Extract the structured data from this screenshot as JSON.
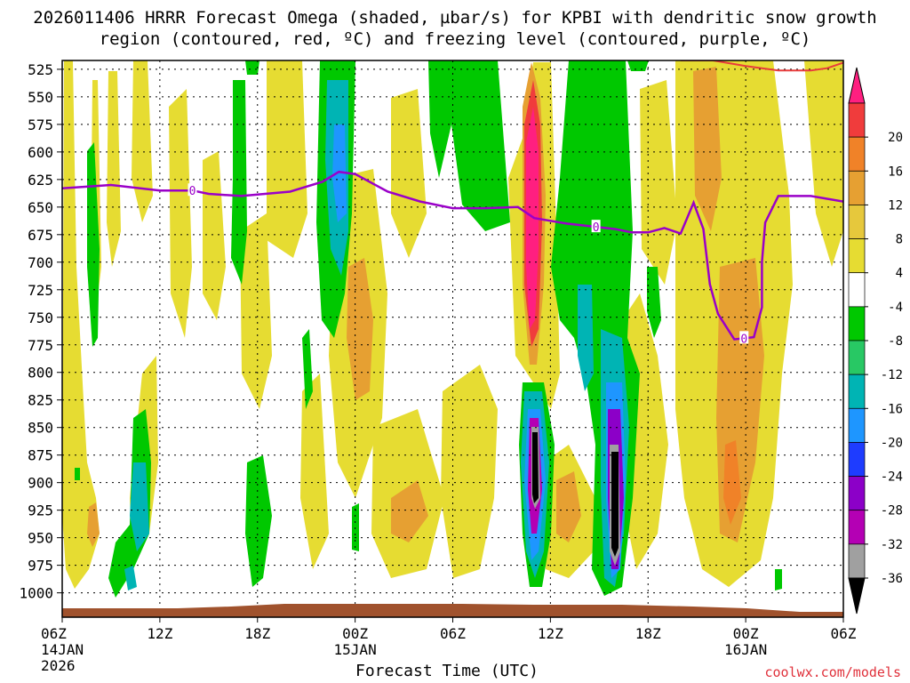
{
  "chart_data": {
    "type": "heatmap",
    "title": "2026011406 HRRR Forecast Omega (shaded, µbar/s) for KPBI with dendritic snow growth region (contoured, red, ºC) and freezing level (contoured, purple, ºC)",
    "xlabel": "Forecast Time (UTC)",
    "ylabel": "",
    "y_ticks": [
      525,
      550,
      575,
      600,
      625,
      650,
      675,
      700,
      725,
      750,
      775,
      800,
      825,
      850,
      875,
      900,
      925,
      950,
      975,
      1000
    ],
    "y_range": [
      517,
      1010
    ],
    "x_range_hours": [
      0,
      48
    ],
    "x_ticks": [
      {
        "h": 0,
        "label": "06Z",
        "sub": [
          "14JAN",
          "2026"
        ]
      },
      {
        "h": 6,
        "label": "12Z",
        "sub": []
      },
      {
        "h": 12,
        "label": "18Z",
        "sub": []
      },
      {
        "h": 18,
        "label": "00Z",
        "sub": [
          "15JAN"
        ]
      },
      {
        "h": 24,
        "label": "06Z",
        "sub": []
      },
      {
        "h": 30,
        "label": "12Z",
        "sub": []
      },
      {
        "h": 36,
        "label": "18Z",
        "sub": []
      },
      {
        "h": 42,
        "label": "00Z",
        "sub": [
          "16JAN"
        ]
      },
      {
        "h": 48,
        "label": "06Z",
        "sub": []
      }
    ],
    "colorbar": {
      "labels": [
        "20",
        "16",
        "12",
        "8",
        "4",
        "-4",
        "-8",
        "-12",
        "-16",
        "-20",
        "-24",
        "-28",
        "-32",
        "-36"
      ],
      "colors": [
        "#ff1f80",
        "#f03c3c",
        "#f08228",
        "#e6a032",
        "#e6c83c",
        "#e6dc32",
        "#ffffff",
        "#00c800",
        "#28c864",
        "#00b4b4",
        "#1e96ff",
        "#1e3cff",
        "#8c00c8",
        "#b400b4",
        "#a0a0a0",
        "#000000"
      ]
    },
    "freezing_level": {
      "label": "0",
      "points": [
        [
          0,
          633
        ],
        [
          3,
          630
        ],
        [
          6,
          635
        ],
        [
          8,
          635
        ],
        [
          9,
          638
        ],
        [
          11,
          640
        ],
        [
          14,
          636
        ],
        [
          16,
          627
        ],
        [
          17,
          618
        ],
        [
          18,
          620
        ],
        [
          20,
          636
        ],
        [
          22,
          645
        ],
        [
          24,
          651
        ],
        [
          26,
          651
        ],
        [
          28,
          650
        ],
        [
          29,
          660
        ],
        [
          31,
          665
        ],
        [
          34,
          670
        ],
        [
          35,
          673
        ],
        [
          36,
          673
        ],
        [
          37,
          669
        ],
        [
          38,
          674
        ],
        [
          38.8,
          646
        ],
        [
          39.4,
          670
        ],
        [
          39.8,
          720
        ],
        [
          40.3,
          747
        ],
        [
          41.3,
          770
        ],
        [
          42.5,
          768
        ],
        [
          43,
          741
        ],
        [
          43,
          700
        ],
        [
          43.2,
          664
        ],
        [
          44,
          640
        ],
        [
          46,
          640
        ],
        [
          48,
          645
        ]
      ]
    },
    "snow_growth_region": {
      "points": [
        [
          38,
          517
        ],
        [
          40,
          517
        ],
        [
          42,
          522
        ],
        [
          44,
          526
        ],
        [
          46,
          526
        ],
        [
          47,
          524
        ],
        [
          48,
          519
        ]
      ]
    },
    "omega_blobs": [
      {
        "h": 17.3,
        "p": 640,
        "wh": 0.9,
        "wp": 150,
        "v": -14
      },
      {
        "h": 28.8,
        "p": 660,
        "wh": 0.6,
        "wp": 100,
        "v": 20
      },
      {
        "h": 29.1,
        "p": 850,
        "wh": 0.45,
        "wp": 75,
        "v": -36
      },
      {
        "h": 33.9,
        "p": 880,
        "wh": 0.5,
        "wp": 90,
        "v": -36
      },
      {
        "h": 32.2,
        "p": 650,
        "wh": 0.9,
        "wp": 140,
        "v": -11
      },
      {
        "h": 3.2,
        "p": 900,
        "wh": 0.6,
        "wp": 90,
        "v": -11
      },
      {
        "h": 41.7,
        "p": 860,
        "wh": 1.5,
        "wp": 120,
        "v": 10
      },
      {
        "h": 19.2,
        "p": 735,
        "wh": 0.9,
        "wp": 70,
        "v": 8
      },
      {
        "h": 22,
        "p": 890,
        "wh": 0.9,
        "wp": 60,
        "v": 8
      }
    ]
  },
  "credit": "coolwx.com/models"
}
